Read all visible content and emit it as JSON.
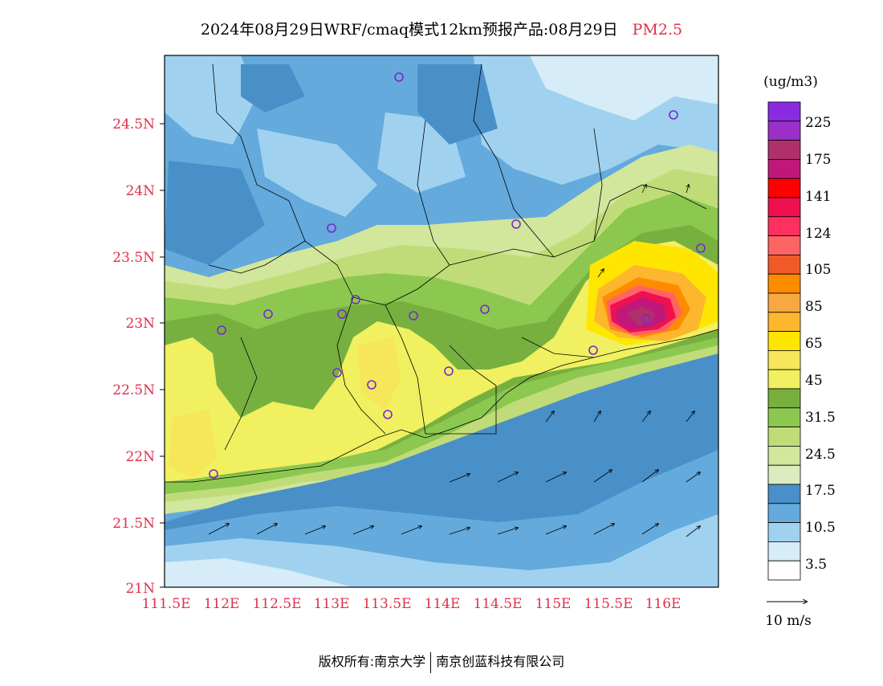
{
  "header": {
    "title": "2024年08月29日WRF/cmaq模式12km预报产品:08月29日",
    "variable": "PM2.5"
  },
  "map": {
    "lat_labels": [
      "24.5N",
      "24N",
      "23.5N",
      "23N",
      "22.5N",
      "22N",
      "21.5N",
      "21N"
    ],
    "lon_labels": [
      "111.5E",
      "112E",
      "112.5E",
      "113E",
      "113.5E",
      "114E",
      "114.5E",
      "115E",
      "115.5E",
      "116E"
    ]
  },
  "legend": {
    "unit": "(ug/m3)",
    "labels": [
      "225",
      "175",
      "141",
      "124",
      "105",
      "85",
      "65",
      "45",
      "31.5",
      "24.5",
      "17.5",
      "10.5",
      "3.5"
    ],
    "colors": [
      "#8a2be2",
      "#9b30c8",
      "#b0306a",
      "#c0187a",
      "#ff0000",
      "#f01050",
      "#ff3060",
      "#ff6464",
      "#f05a28",
      "#ff8c00",
      "#f8a840",
      "#fdb72e",
      "#ffe600",
      "#f6e65a",
      "#f0f060",
      "#78b040",
      "#8cc850",
      "#c0dc78",
      "#d2e69c",
      "#dcecc0",
      "#4a90c8",
      "#64aadc",
      "#a0d2f0",
      "#d6ecf8",
      "#ffffff"
    ],
    "wind_label": "10 m/s"
  },
  "footer": {
    "copyright": "版权所有:南京大学",
    "company": "南京创蓝科技有限公司"
  }
}
